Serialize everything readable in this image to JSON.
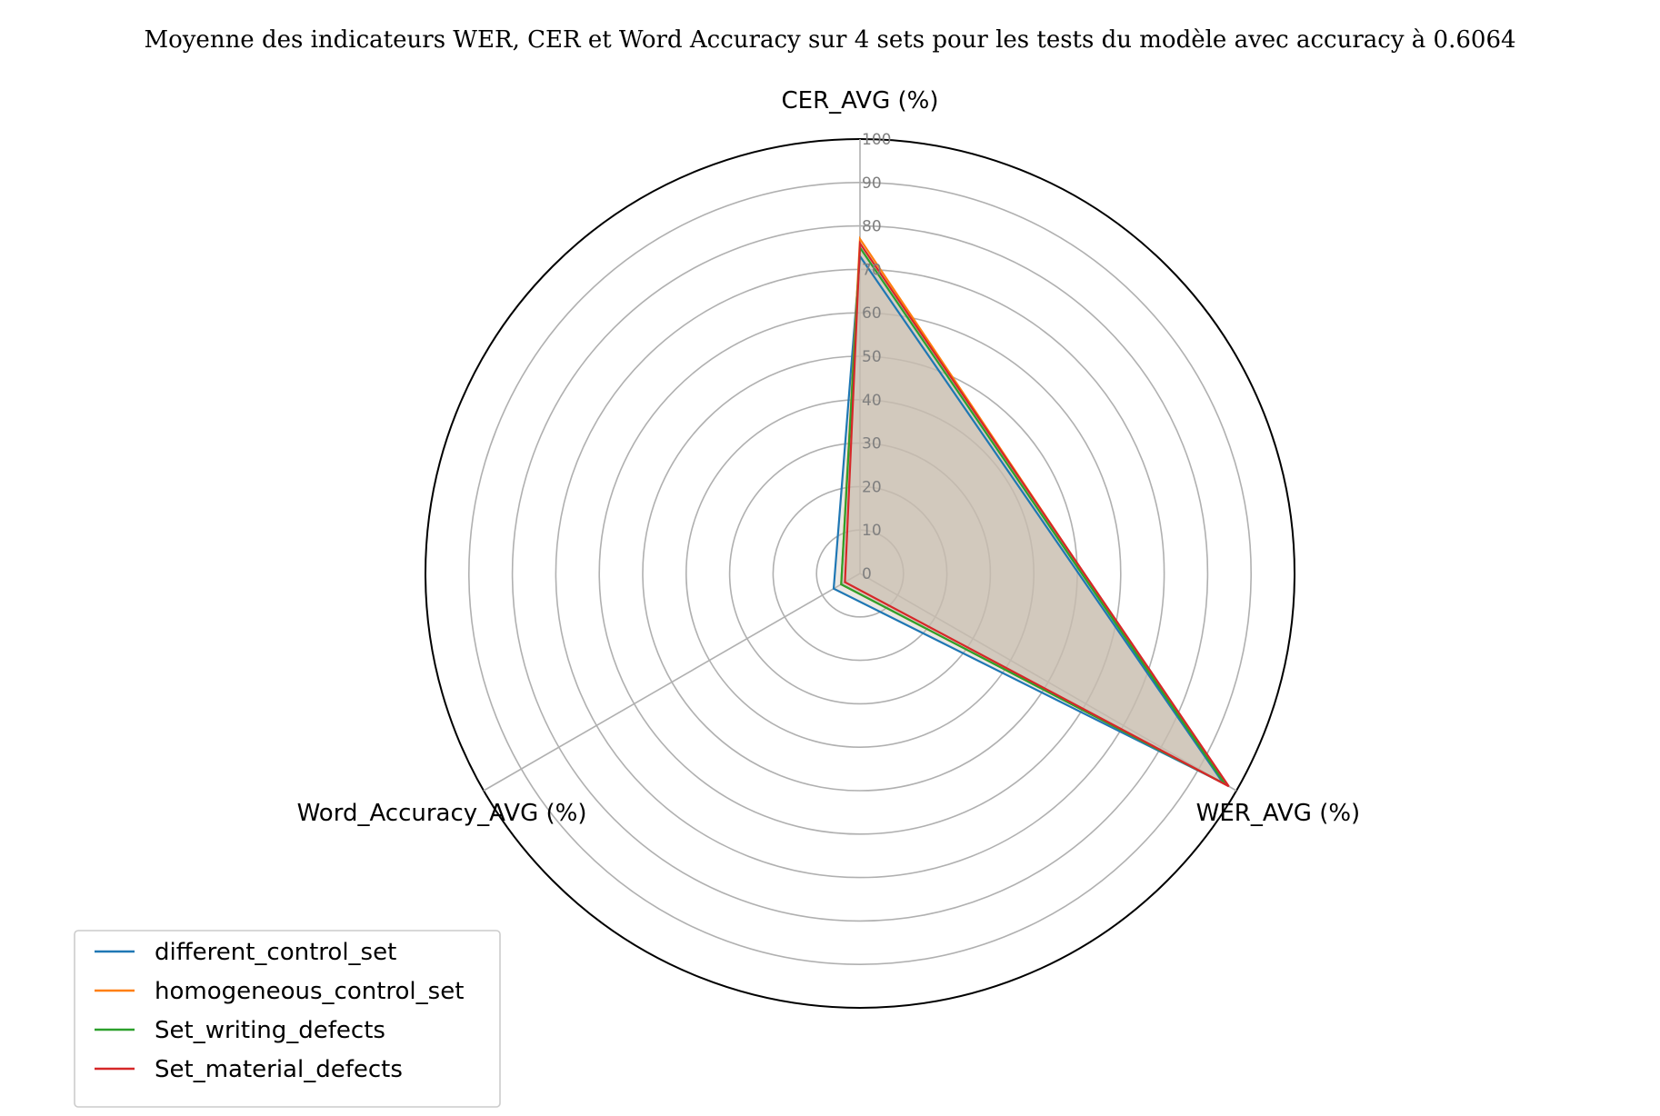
{
  "chart_data": {
    "type": "radar",
    "title": "Moyenne des indicateurs WER, CER et Word Accuracy sur 4 sets pour les tests du modèle avec accuracy à 0.6064",
    "axes": [
      "CER_AVG (%)",
      "WER_AVG (%)",
      "Word_Accuracy_AVG (%)"
    ],
    "rlim": [
      0,
      100
    ],
    "rticks": [
      0,
      10,
      20,
      30,
      40,
      50,
      60,
      70,
      80,
      90,
      100
    ],
    "grid": true,
    "legend_position": "lower-left",
    "series": [
      {
        "name": "different_control_set",
        "color": "#1f77b4",
        "values": [
          73,
          96.5,
          7
        ]
      },
      {
        "name": "homogeneous_control_set",
        "color": "#ff7f0e",
        "values": [
          77,
          97,
          5
        ]
      },
      {
        "name": "Set_writing_defects",
        "color": "#2ca02c",
        "values": [
          75,
          97,
          5
        ]
      },
      {
        "name": "Set_material_defects",
        "color": "#d62728",
        "values": [
          76,
          98,
          4
        ]
      }
    ],
    "fill_color": "#c8beaf"
  }
}
